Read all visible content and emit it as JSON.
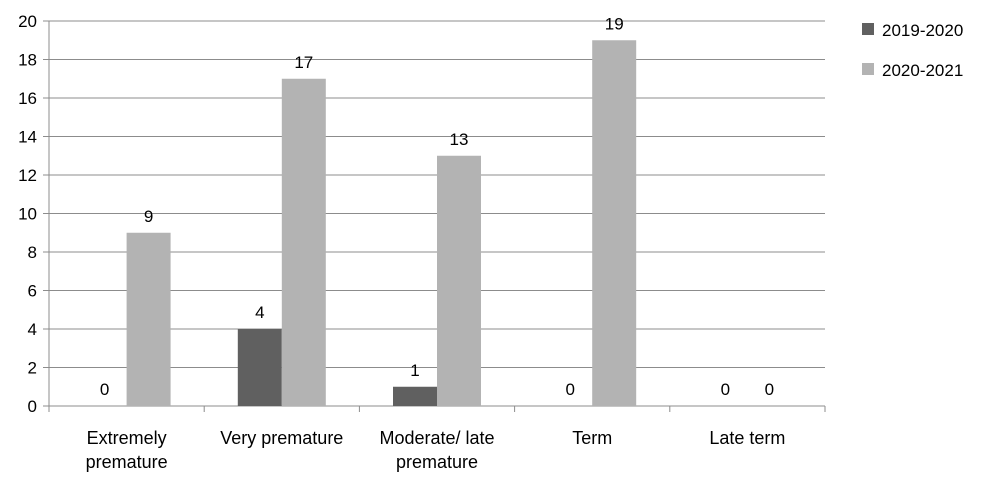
{
  "chart_data": {
    "type": "bar",
    "categories": [
      [
        "Extremely",
        "premature"
      ],
      [
        "Very premature"
      ],
      [
        "Moderate/ late",
        "premature"
      ],
      [
        "Term"
      ],
      [
        "Late term"
      ]
    ],
    "series": [
      {
        "name": "2019-2020",
        "values": [
          0,
          4,
          1,
          0,
          0
        ],
        "color": "#606060"
      },
      {
        "name": "2020-2021",
        "values": [
          9,
          17,
          13,
          19,
          0
        ],
        "color": "#b3b3b3"
      }
    ],
    "ylim": [
      0,
      20
    ],
    "yticks": [
      0,
      2,
      4,
      6,
      8,
      10,
      12,
      14,
      16,
      18,
      20
    ],
    "grid": true,
    "legend": "right",
    "title": "",
    "xlabel": "",
    "ylabel": ""
  }
}
